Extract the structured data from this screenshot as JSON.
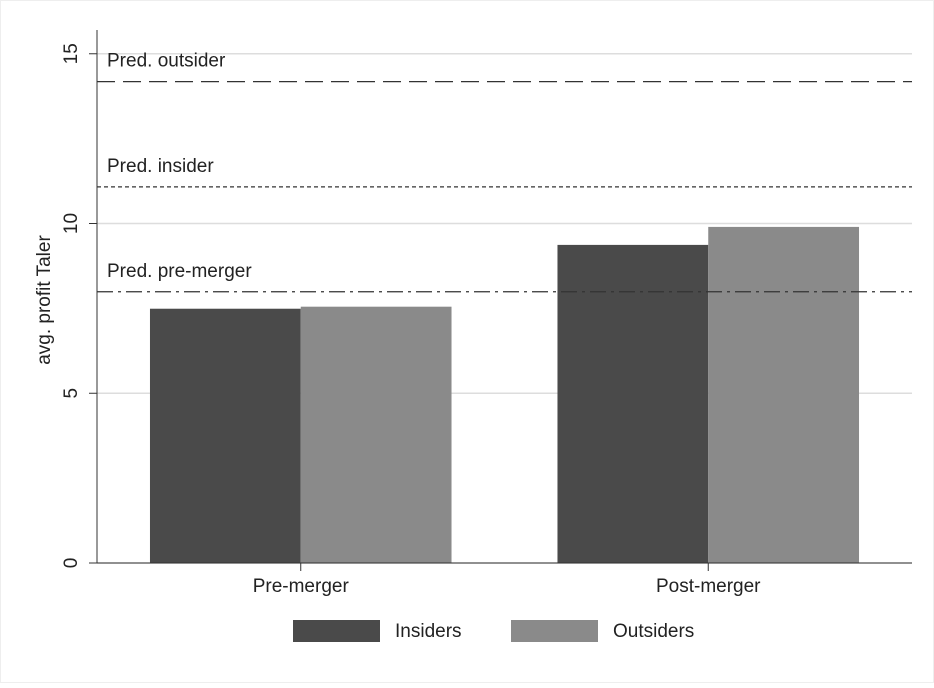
{
  "chart_data": {
    "type": "bar",
    "y_label": "avg. profit Taler",
    "categories": [
      "Pre-merger",
      "Post-merger"
    ],
    "series": [
      {
        "name": "Insiders",
        "color": "#4a4a4a",
        "values": [
          7.49,
          9.37
        ]
      },
      {
        "name": "Outsiders",
        "color": "#8a8a8a",
        "values": [
          7.55,
          9.9
        ]
      }
    ],
    "ylim": [
      0,
      15.7
    ],
    "yticks": [
      0,
      5,
      10,
      15
    ],
    "grid": true,
    "legend": "bottom",
    "reference_lines": [
      {
        "label": "Pred. outsider",
        "value": 14.18,
        "style": "dashed"
      },
      {
        "label": "Pred. insider",
        "value": 11.08,
        "style": "dotted"
      },
      {
        "label": "Pred. pre-merger",
        "value": 7.99,
        "style": "dashdot"
      }
    ]
  }
}
